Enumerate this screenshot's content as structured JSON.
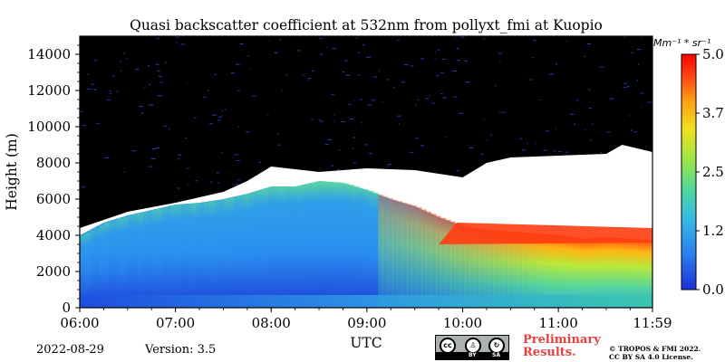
{
  "chart_data": {
    "type": "heatmap",
    "title": "Quasi backscatter coefficient at 532nm from pollyxt_fmi at Kuopio",
    "xlabel": "UTC",
    "ylabel": "Height (m)",
    "x_ticks": [
      "06:00",
      "07:00",
      "08:00",
      "09:00",
      "10:00",
      "11:00",
      "11:59"
    ],
    "y_ticks": [
      0,
      2000,
      4000,
      6000,
      8000,
      10000,
      12000,
      14000
    ],
    "ylim": [
      0,
      15000
    ],
    "xlim": [
      "06:00",
      "11:59"
    ],
    "colorbar": {
      "unit": "Mm⁻¹ * sr⁻¹",
      "ticks": [
        "0.0",
        "1.2",
        "2.5",
        "3.7",
        "5.0"
      ],
      "range": [
        0,
        5.0
      ],
      "colormap": [
        "#1f3fd6",
        "#2a8cf0",
        "#3ec7d6",
        "#5ee07a",
        "#c8ee3c",
        "#ffd21c",
        "#ff8a14",
        "#ff3d12",
        "#ff0000"
      ]
    },
    "signal_top_profile": {
      "time": [
        "06:00",
        "06:15",
        "06:30",
        "06:45",
        "07:00",
        "07:15",
        "07:30",
        "07:45",
        "08:00",
        "08:15",
        "08:30",
        "08:45",
        "09:00",
        "09:15",
        "09:30",
        "09:45",
        "10:00",
        "10:15",
        "10:30",
        "10:45",
        "11:00",
        "11:15",
        "11:30",
        "11:45",
        "11:59"
      ],
      "height_m": [
        4000,
        4700,
        5100,
        5400,
        5700,
        5800,
        6000,
        6300,
        6700,
        6700,
        7000,
        6900,
        6500,
        6000,
        5600,
        5000,
        4500,
        4300,
        4200,
        4100,
        4000,
        3800,
        3900,
        3800,
        3700
      ]
    },
    "noise_boundary_profile": {
      "time": [
        "06:00",
        "06:30",
        "07:00",
        "07:30",
        "07:45",
        "08:00",
        "08:30",
        "09:00",
        "09:30",
        "10:00",
        "10:15",
        "10:30",
        "11:00",
        "11:30",
        "11:40",
        "11:59"
      ],
      "height_m": [
        4400,
        5300,
        5800,
        6400,
        7000,
        7800,
        7500,
        7700,
        7600,
        7200,
        8000,
        8300,
        8400,
        8500,
        9000,
        8600
      ]
    },
    "max_value_region": {
      "time_range": [
        "09:45",
        "11:59"
      ],
      "height_range_m": [
        3500,
        4700
      ],
      "value": 5.0
    },
    "grid": false
  },
  "footer": {
    "date": "2022-08-29",
    "version": "Version: 3.5",
    "preliminary": [
      "Preliminary",
      "Results."
    ],
    "copyright": [
      "© TROPOS & FMI 2022.",
      "CC BY SA 4.0 License."
    ],
    "license_badge": {
      "cc": "cc",
      "by": "BY",
      "sa": "SA"
    }
  },
  "colors": {
    "background_noise": "#000000",
    "no_signal": "#ffffff",
    "accent_prelim": "#e8413c"
  }
}
